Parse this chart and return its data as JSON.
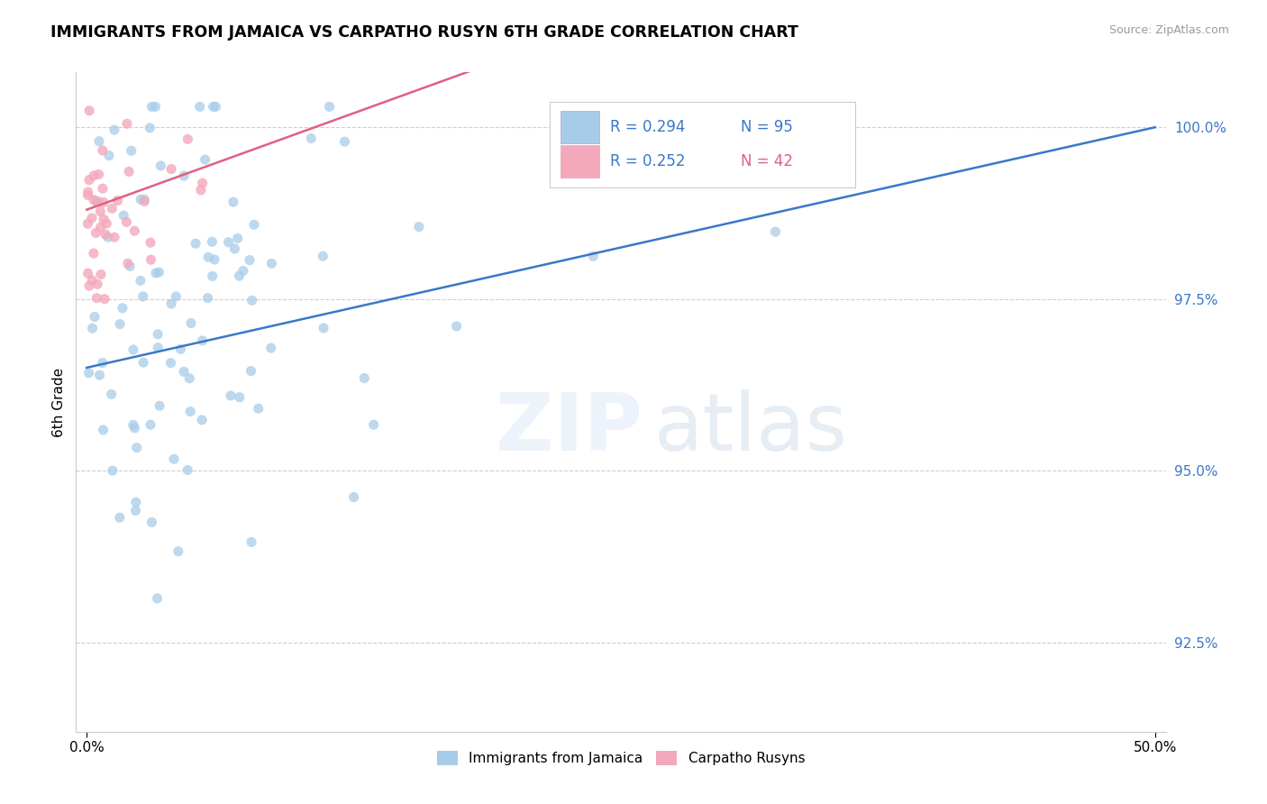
{
  "title": "IMMIGRANTS FROM JAMAICA VS CARPATHO RUSYN 6TH GRADE CORRELATION CHART",
  "source": "Source: ZipAtlas.com",
  "ylabel": "6th Grade",
  "ytick_vals": [
    92.5,
    95.0,
    97.5,
    100.0
  ],
  "ymin": 91.2,
  "ymax": 100.8,
  "xmin": -0.5,
  "xmax": 50.5,
  "legend_blue_label": "Immigrants from Jamaica",
  "legend_pink_label": "Carpatho Rusyns",
  "legend_R_blue": "R = 0.294",
  "legend_N_blue": "N = 95",
  "legend_R_pink": "R = 0.252",
  "legend_N_pink": "N = 42",
  "blue_color": "#a8cce8",
  "pink_color": "#f4a8bc",
  "trendline_blue": "#3a78c9",
  "trendline_pink": "#e06080",
  "text_blue": "#3a78c9"
}
